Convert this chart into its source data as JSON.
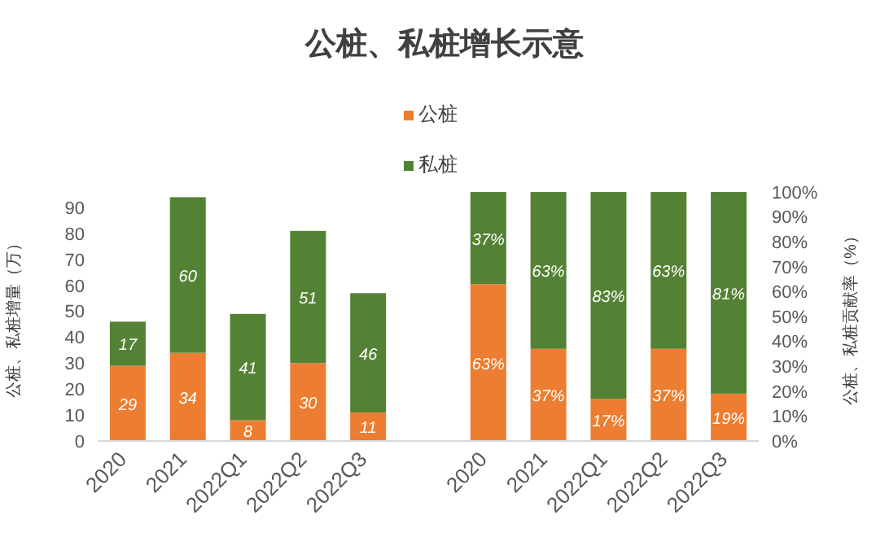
{
  "chart_data": {
    "type": "bar",
    "title": "公桩、私桩增长示意",
    "ylabel": "公桩、私桩增量（万）",
    "y2label": "公桩、私桩贡献率（%）",
    "categories": [
      "2020",
      "2021",
      "2022Q1",
      "2022Q2",
      "2022Q3",
      null,
      "2020",
      "2021",
      "2022Q1",
      "2022Q2",
      "2022Q3"
    ],
    "stacked": true,
    "legend": "top",
    "grid": false,
    "ylim": [
      0,
      96
    ],
    "yticks": [
      0,
      10,
      20,
      30,
      40,
      50,
      60,
      70,
      80,
      90
    ],
    "y2lim": [
      0,
      100
    ],
    "y2ticks": [
      {
        "value": 0,
        "label": "0%"
      },
      {
        "value": 10,
        "label": "10%"
      },
      {
        "value": 20,
        "label": "20%"
      },
      {
        "value": 30,
        "label": "30%"
      },
      {
        "value": 40,
        "label": "40%"
      },
      {
        "value": 50,
        "label": "50%"
      },
      {
        "value": 60,
        "label": "60%"
      },
      {
        "value": 70,
        "label": "70%"
      },
      {
        "value": 80,
        "label": "80%"
      },
      {
        "value": 90,
        "label": "90%"
      },
      {
        "value": 100,
        "label": "100%"
      }
    ],
    "series": [
      {
        "name": "公桩",
        "color": "#ed7d31",
        "values": [
          29,
          34,
          8,
          30,
          11,
          null,
          null,
          null,
          null,
          null,
          null
        ],
        "value_labels": [
          "29",
          "34",
          "8",
          "30",
          "11",
          null,
          null,
          null,
          null,
          null,
          null
        ]
      },
      {
        "name": "私桩",
        "color": "#548235",
        "values": [
          17,
          60,
          41,
          51,
          46,
          null,
          null,
          null,
          null,
          null,
          null
        ],
        "value_labels": [
          "17",
          "60",
          "41",
          "51",
          "46",
          null,
          null,
          null,
          null,
          null,
          null
        ]
      },
      {
        "color": "#ed7d31",
        "axis": "y2",
        "values": [
          null,
          null,
          null,
          null,
          null,
          null,
          63,
          37,
          17,
          37,
          19
        ],
        "value_labels": [
          null,
          null,
          null,
          null,
          null,
          null,
          "63%",
          "37%",
          "17%",
          "37%",
          "19%"
        ]
      },
      {
        "color": "#548235",
        "axis": "y2",
        "values": [
          null,
          null,
          null,
          null,
          null,
          null,
          37,
          63,
          83,
          63,
          81
        ],
        "value_labels": [
          null,
          null,
          null,
          null,
          null,
          null,
          "37%",
          "63%",
          "83%",
          "63%",
          "81%"
        ]
      }
    ]
  }
}
